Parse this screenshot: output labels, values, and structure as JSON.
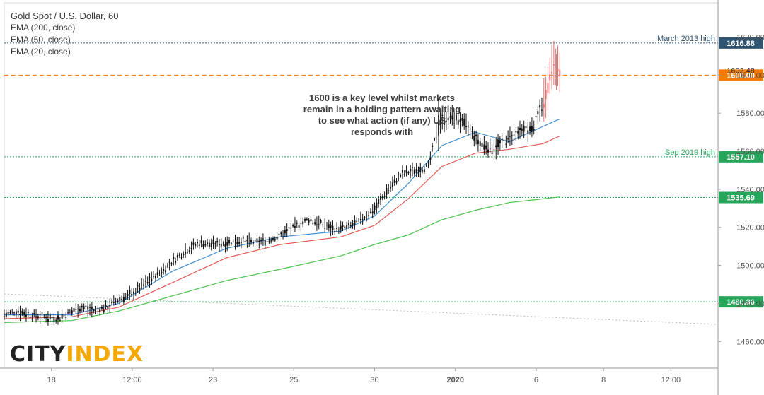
{
  "legend": {
    "title": "Gold Spot / U.S. Dollar, 60",
    "ema200": "EMA (200, close)",
    "ema50": "EMA (50, close)",
    "ema20": "EMA (20, close)"
  },
  "annotation": {
    "lines": [
      "1600 is a key level whilst markets",
      "remain in a holding pattern awaiting",
      "to see what action (if any) US",
      "responds with"
    ]
  },
  "logo": {
    "part1": "CITY",
    "part2": "INDEX"
  },
  "colors": {
    "ema20": "#3f8fd2",
    "ema50": "#e05a55",
    "ema200": "#4cc24c",
    "green_level": "#26a65b",
    "dark_level": "#2f5573",
    "orange_level": "#f57c00",
    "trendline": "#b9b9b9",
    "candle": "#111111",
    "candle_recent": "#e37373"
  },
  "chart_data": {
    "type": "candlestick",
    "instrument": "Gold Spot / U.S. Dollar",
    "timeframe": "60",
    "ylim": [
      1446,
      1638
    ],
    "y_ticks": [
      1460,
      1480,
      1500,
      1520,
      1540,
      1560,
      1580,
      1600,
      1620
    ],
    "x_tick_labels": [
      "18",
      "12:00",
      "23",
      "25",
      "30",
      "2020",
      "6",
      "8",
      "12:00"
    ],
    "horizontal_levels": [
      {
        "value": 1616.88,
        "label": "1616.88",
        "note": "March 2013 high",
        "style": "dotted",
        "color": "#2f5573"
      },
      {
        "value": 1600.0,
        "label": "1600.00",
        "note": "",
        "style": "dashed",
        "color": "#f57c00"
      },
      {
        "value": 1557.1,
        "label": "1557.10",
        "note": "Sep 2019 high",
        "style": "dotted",
        "color": "#26a65b"
      },
      {
        "value": 1535.69,
        "label": "1535.69",
        "note": "",
        "style": "dotted",
        "color": "#26a65b"
      },
      {
        "value": 1480.86,
        "label": "1480.86",
        "note": "",
        "style": "dotted",
        "color": "#26a65b"
      }
    ],
    "last_price_label": "1602.48",
    "last_price": 1602.48,
    "price_path": [
      [
        0,
        1474
      ],
      [
        0.04,
        1476
      ],
      [
        0.08,
        1474
      ],
      [
        0.12,
        1473
      ],
      [
        0.16,
        1472
      ],
      [
        0.19,
        1475
      ],
      [
        0.23,
        1478
      ],
      [
        0.27,
        1476
      ],
      [
        0.3,
        1478
      ],
      [
        0.34,
        1482
      ],
      [
        0.38,
        1485
      ],
      [
        0.42,
        1491
      ],
      [
        0.46,
        1496
      ],
      [
        0.5,
        1502
      ],
      [
        0.54,
        1508
      ],
      [
        0.58,
        1512
      ],
      [
        0.62,
        1511
      ],
      [
        0.66,
        1512
      ],
      [
        0.7,
        1513
      ],
      [
        0.74,
        1512
      ],
      [
        0.78,
        1513
      ],
      [
        0.82,
        1516
      ],
      [
        0.86,
        1520
      ],
      [
        0.9,
        1524
      ],
      [
        0.94,
        1522
      ],
      [
        0.98,
        1519
      ],
      [
        1.02,
        1520
      ],
      [
        1.06,
        1524
      ],
      [
        1.1,
        1530
      ],
      [
        1.14,
        1540
      ],
      [
        1.18,
        1548
      ],
      [
        1.22,
        1550
      ],
      [
        1.26,
        1552
      ],
      [
        1.29,
        1575
      ],
      [
        1.33,
        1578
      ],
      [
        1.37,
        1574
      ],
      [
        1.41,
        1564
      ],
      [
        1.45,
        1561
      ],
      [
        1.49,
        1566
      ],
      [
        1.53,
        1570
      ],
      [
        1.57,
        1572
      ],
      [
        1.61,
        1590
      ],
      [
        1.63,
        1608
      ],
      [
        1.65,
        1602
      ]
    ],
    "ema20": [
      [
        0,
        1474
      ],
      [
        0.2,
        1474
      ],
      [
        0.34,
        1480
      ],
      [
        0.5,
        1497
      ],
      [
        0.66,
        1509
      ],
      [
        0.82,
        1515
      ],
      [
        1.0,
        1518
      ],
      [
        1.1,
        1526
      ],
      [
        1.2,
        1543
      ],
      [
        1.3,
        1563
      ],
      [
        1.4,
        1570
      ],
      [
        1.5,
        1565
      ],
      [
        1.6,
        1573
      ],
      [
        1.65,
        1577
      ]
    ],
    "ema50": [
      [
        0,
        1472
      ],
      [
        0.2,
        1473
      ],
      [
        0.34,
        1478
      ],
      [
        0.5,
        1491
      ],
      [
        0.66,
        1504
      ],
      [
        0.82,
        1511
      ],
      [
        1.0,
        1515
      ],
      [
        1.1,
        1521
      ],
      [
        1.2,
        1535
      ],
      [
        1.3,
        1552
      ],
      [
        1.4,
        1559
      ],
      [
        1.5,
        1561
      ],
      [
        1.6,
        1564
      ],
      [
        1.65,
        1568
      ]
    ],
    "ema200": [
      [
        0,
        1470
      ],
      [
        0.2,
        1471
      ],
      [
        0.34,
        1476
      ],
      [
        0.5,
        1484
      ],
      [
        0.66,
        1492
      ],
      [
        0.82,
        1498
      ],
      [
        1.0,
        1505
      ],
      [
        1.1,
        1511
      ],
      [
        1.2,
        1516
      ],
      [
        1.3,
        1524
      ],
      [
        1.4,
        1529
      ],
      [
        1.5,
        1533
      ],
      [
        1.65,
        1536
      ]
    ],
    "trendline": [
      [
        0,
        1485
      ],
      [
        2.12,
        1469
      ]
    ]
  }
}
